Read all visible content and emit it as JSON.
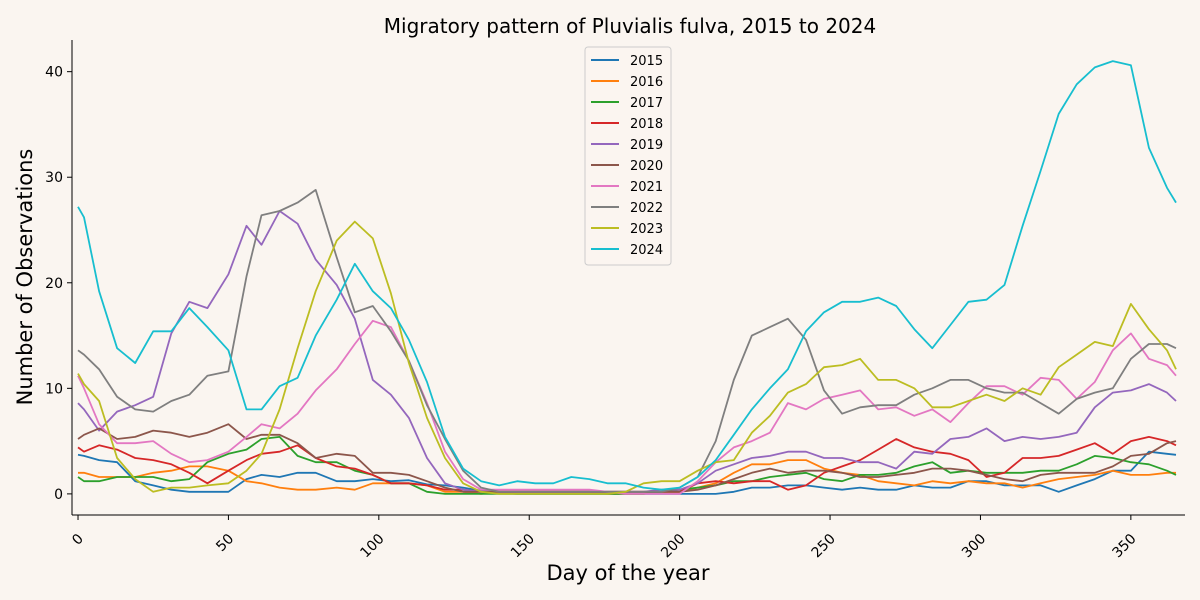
{
  "chart_data": {
    "type": "line",
    "title": "Migratory pattern of Pluvialis fulva, 2015 to 2024",
    "xlabel": "Day of the year",
    "ylabel": "Number of Observations",
    "xlim": [
      -2,
      368
    ],
    "ylim": [
      -2,
      43
    ],
    "xticks": [
      0,
      50,
      100,
      150,
      200,
      250,
      300,
      350
    ],
    "yticks": [
      0,
      10,
      20,
      30,
      40
    ],
    "grid": false,
    "legend_position": "top-center",
    "x": [
      0,
      2,
      7,
      13,
      19,
      25,
      31,
      37,
      43,
      50,
      56,
      61,
      67,
      73,
      79,
      86,
      92,
      98,
      104,
      110,
      116,
      122,
      128,
      134,
      140,
      146,
      152,
      158,
      164,
      170,
      176,
      182,
      188,
      194,
      200,
      206,
      212,
      218,
      224,
      230,
      236,
      242,
      248,
      254,
      260,
      266,
      272,
      278,
      284,
      290,
      296,
      302,
      308,
      314,
      320,
      326,
      332,
      338,
      344,
      350,
      356,
      362,
      365
    ],
    "series": [
      {
        "name": "2015",
        "color": "#1f77b4",
        "values": [
          3.7,
          3.6,
          3.2,
          3.0,
          1.2,
          0.8,
          0.4,
          0.2,
          0.2,
          0.2,
          1.4,
          1.8,
          1.6,
          2.0,
          2.0,
          1.2,
          1.2,
          1.4,
          1.2,
          1.3,
          0.9,
          0.8,
          0.6,
          0.3,
          0.1,
          0.0,
          0.0,
          0.0,
          0.0,
          0.0,
          0.0,
          0.0,
          0.0,
          0.0,
          0.0,
          0.0,
          0.0,
          0.2,
          0.6,
          0.6,
          0.8,
          0.8,
          0.6,
          0.4,
          0.6,
          0.4,
          0.4,
          0.8,
          0.6,
          0.6,
          1.2,
          1.2,
          0.8,
          0.8,
          0.8,
          0.2,
          0.8,
          1.4,
          2.2,
          2.2,
          4.0,
          3.8,
          3.7
        ]
      },
      {
        "name": "2016",
        "color": "#ff7f0e",
        "values": [
          2.0,
          2.0,
          1.6,
          1.6,
          1.6,
          2.0,
          2.2,
          2.6,
          2.6,
          2.2,
          1.2,
          1.0,
          0.6,
          0.4,
          0.4,
          0.6,
          0.4,
          1.0,
          1.0,
          1.0,
          0.8,
          0.2,
          0.2,
          0.0,
          0.2,
          0.2,
          0.2,
          0.2,
          0.2,
          0.2,
          0.0,
          0.0,
          0.0,
          0.2,
          0.2,
          0.6,
          1.0,
          2.0,
          2.8,
          2.8,
          3.2,
          3.2,
          2.4,
          2.0,
          1.8,
          1.2,
          1.0,
          0.8,
          1.2,
          1.0,
          1.2,
          1.0,
          1.0,
          0.6,
          1.0,
          1.4,
          1.6,
          1.8,
          2.2,
          1.8,
          1.8,
          2.0,
          2.0
        ]
      },
      {
        "name": "2017",
        "color": "#2ca02c",
        "values": [
          1.6,
          1.2,
          1.2,
          1.6,
          1.6,
          1.6,
          1.2,
          1.4,
          3.0,
          3.8,
          4.2,
          5.2,
          5.4,
          3.6,
          3.0,
          3.0,
          2.2,
          1.8,
          1.0,
          1.0,
          0.2,
          0.0,
          0.0,
          0.0,
          0.0,
          0.0,
          0.0,
          0.0,
          0.0,
          0.0,
          0.0,
          0.0,
          0.0,
          0.2,
          0.4,
          0.6,
          0.8,
          1.2,
          1.2,
          1.6,
          1.8,
          2.0,
          1.4,
          1.2,
          1.8,
          1.8,
          2.0,
          2.6,
          3.0,
          2.0,
          2.2,
          2.0,
          2.0,
          2.0,
          2.2,
          2.2,
          2.8,
          3.6,
          3.4,
          3.0,
          2.8,
          2.2,
          1.8
        ]
      },
      {
        "name": "2018",
        "color": "#d62728",
        "values": [
          4.4,
          4.0,
          4.6,
          4.2,
          3.4,
          3.2,
          2.8,
          2.0,
          1.0,
          2.2,
          3.2,
          3.8,
          4.0,
          4.6,
          3.4,
          2.6,
          2.4,
          1.8,
          1.0,
          1.0,
          0.8,
          0.4,
          0.4,
          0.2,
          0.2,
          0.2,
          0.2,
          0.2,
          0.2,
          0.2,
          0.2,
          0.2,
          0.2,
          0.2,
          0.2,
          1.0,
          1.2,
          1.0,
          1.2,
          1.2,
          0.4,
          0.8,
          2.0,
          2.6,
          3.2,
          4.2,
          5.2,
          4.4,
          4.0,
          3.8,
          3.2,
          1.6,
          2.0,
          3.4,
          3.4,
          3.6,
          4.2,
          4.8,
          3.8,
          5.0,
          5.4,
          5.0,
          4.6
        ]
      },
      {
        "name": "2019",
        "color": "#9467bd",
        "values": [
          8.6,
          8.0,
          6.0,
          7.8,
          8.4,
          9.2,
          15.2,
          18.2,
          17.6,
          20.8,
          25.4,
          23.6,
          26.8,
          25.6,
          22.2,
          19.8,
          16.6,
          10.8,
          9.4,
          7.2,
          3.4,
          1.0,
          0.4,
          0.2,
          0.2,
          0.2,
          0.2,
          0.2,
          0.2,
          0.2,
          0.2,
          0.2,
          0.2,
          0.4,
          0.4,
          1.0,
          2.2,
          2.8,
          3.4,
          3.6,
          4.0,
          4.0,
          3.4,
          3.4,
          3.0,
          3.0,
          2.4,
          4.0,
          3.8,
          5.2,
          5.4,
          6.2,
          5.0,
          5.4,
          5.2,
          5.4,
          5.8,
          8.2,
          9.6,
          9.8,
          10.4,
          9.6,
          8.8
        ]
      },
      {
        "name": "2020",
        "color": "#8c564b",
        "values": [
          5.2,
          5.6,
          6.2,
          5.2,
          5.4,
          6.0,
          5.8,
          5.4,
          5.8,
          6.6,
          5.2,
          5.6,
          5.6,
          4.8,
          3.4,
          3.8,
          3.6,
          2.0,
          2.0,
          1.8,
          1.2,
          0.6,
          0.2,
          0.2,
          0.2,
          0.2,
          0.2,
          0.2,
          0.2,
          0.2,
          0.2,
          0.2,
          0.2,
          0.2,
          0.2,
          0.4,
          0.8,
          1.4,
          2.0,
          2.4,
          2.0,
          2.2,
          2.2,
          2.0,
          1.6,
          1.6,
          1.8,
          2.0,
          2.4,
          2.4,
          2.2,
          1.8,
          1.4,
          1.2,
          1.8,
          2.0,
          2.0,
          2.0,
          2.6,
          3.6,
          3.8,
          4.8,
          5.0
        ]
      },
      {
        "name": "2021",
        "color": "#e377c2",
        "values": [
          11.2,
          10.0,
          6.6,
          4.8,
          4.8,
          5.0,
          3.8,
          3.0,
          3.2,
          4.0,
          5.4,
          6.6,
          6.2,
          7.6,
          9.8,
          11.8,
          14.2,
          16.4,
          15.8,
          12.6,
          8.6,
          4.0,
          1.4,
          0.4,
          0.4,
          0.4,
          0.4,
          0.4,
          0.4,
          0.4,
          0.2,
          0.0,
          0.0,
          0.0,
          0.0,
          1.2,
          3.0,
          4.4,
          5.0,
          5.8,
          8.6,
          8.0,
          9.0,
          9.4,
          9.8,
          8.0,
          8.2,
          7.4,
          8.0,
          6.8,
          8.6,
          10.2,
          10.2,
          9.4,
          11.0,
          10.8,
          9.0,
          10.6,
          13.6,
          15.2,
          12.8,
          12.2,
          11.2
        ]
      },
      {
        "name": "2022",
        "color": "#7f7f7f",
        "values": [
          13.6,
          13.2,
          11.8,
          9.2,
          8.0,
          7.8,
          8.8,
          9.4,
          11.2,
          11.6,
          20.6,
          26.4,
          26.8,
          27.6,
          28.8,
          22.4,
          17.2,
          17.8,
          15.4,
          12.6,
          8.4,
          5.2,
          2.2,
          0.6,
          0.2,
          0.2,
          0.2,
          0.2,
          0.2,
          0.2,
          0.2,
          0.2,
          0.2,
          0.2,
          0.6,
          1.6,
          5.0,
          10.8,
          15.0,
          15.8,
          16.6,
          14.6,
          9.8,
          7.6,
          8.2,
          8.4,
          8.4,
          9.4,
          10.0,
          10.8,
          10.8,
          10.0,
          9.6,
          9.6,
          8.6,
          7.6,
          9.0,
          9.6,
          10.0,
          12.8,
          14.2,
          14.2,
          13.8
        ]
      },
      {
        "name": "2023",
        "color": "#bcbd22",
        "values": [
          11.4,
          10.4,
          8.8,
          3.4,
          1.4,
          0.2,
          0.6,
          0.6,
          0.8,
          1.0,
          2.2,
          3.8,
          8.0,
          13.8,
          19.2,
          24.0,
          25.8,
          24.2,
          19.0,
          12.4,
          7.2,
          3.4,
          1.0,
          0.2,
          0.0,
          0.0,
          0.0,
          0.0,
          0.0,
          0.0,
          0.0,
          0.2,
          1.0,
          1.2,
          1.2,
          2.2,
          3.0,
          3.2,
          5.8,
          7.4,
          9.6,
          10.4,
          12.0,
          12.2,
          12.8,
          10.8,
          10.8,
          10.0,
          8.2,
          8.2,
          8.8,
          9.4,
          8.8,
          10.0,
          9.4,
          12.0,
          13.2,
          14.4,
          14.0,
          18.0,
          15.6,
          13.6,
          11.8
        ]
      },
      {
        "name": "2024",
        "color": "#17becf",
        "values": [
          27.2,
          26.2,
          19.2,
          13.8,
          12.4,
          15.4,
          15.4,
          17.6,
          15.8,
          13.6,
          8.0,
          8.0,
          10.2,
          11.0,
          15.0,
          18.4,
          21.8,
          19.2,
          17.6,
          14.6,
          10.6,
          5.4,
          2.4,
          1.2,
          0.8,
          1.2,
          1.0,
          1.0,
          1.6,
          1.4,
          1.0,
          1.0,
          0.6,
          0.4,
          0.6,
          1.6,
          3.2,
          5.6,
          8.0,
          10.0,
          11.8,
          15.4,
          17.2,
          18.2,
          18.2,
          18.6,
          17.8,
          15.6,
          13.8,
          16.0,
          18.2,
          18.4,
          19.8,
          25.4,
          30.6,
          36.0,
          38.8,
          40.4,
          41.0,
          40.6,
          32.8,
          29.0,
          27.6
        ]
      }
    ]
  }
}
